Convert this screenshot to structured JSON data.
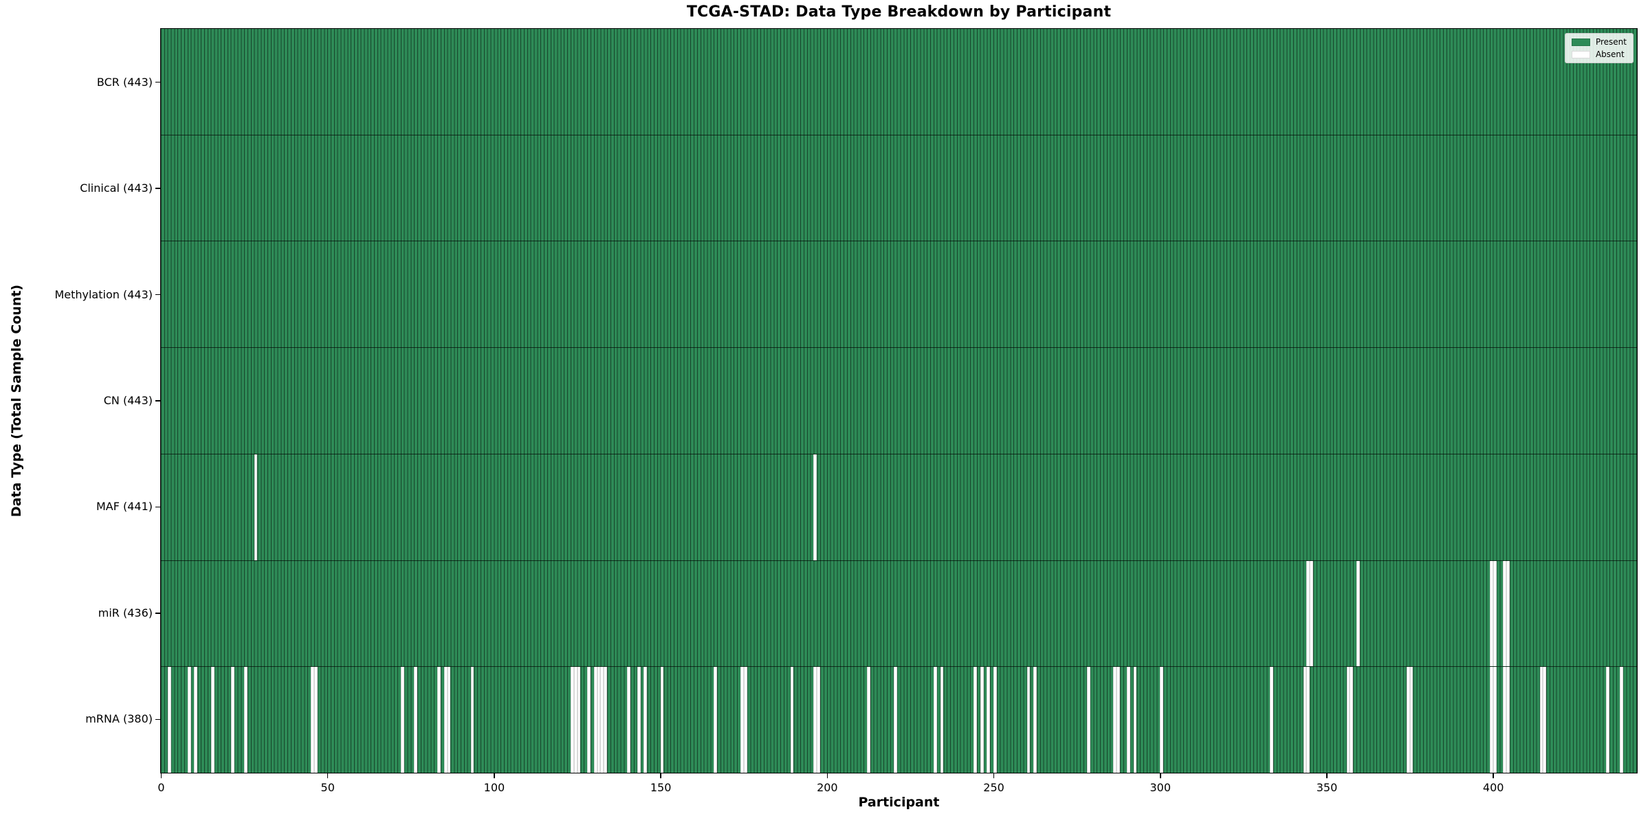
{
  "title": "TCGA-STAD: Data Type Breakdown by Participant",
  "x_axis": {
    "label": "Participant",
    "ticks": [
      0,
      50,
      100,
      150,
      200,
      250,
      300,
      350,
      400
    ]
  },
  "y_axis": {
    "label": "Data Type (Total Sample Count)"
  },
  "legend": {
    "present_label": "Present",
    "absent_label": "Absent"
  },
  "chart_data": {
    "type": "heatmap",
    "subtype": "presence-absence matrix, one column per participant",
    "n_participants": 443,
    "x_range": [
      0,
      443
    ],
    "colors": {
      "present": "#2e8b57",
      "absent": "#ffffff",
      "bar_edge": "rgba(0,0,0,0.5)"
    },
    "legend_position": "upper right",
    "rows": [
      {
        "key": "BCR",
        "label": "BCR (443)",
        "present_count": 443,
        "absent_participants": []
      },
      {
        "key": "Clinical",
        "label": "Clinical (443)",
        "present_count": 443,
        "absent_participants": []
      },
      {
        "key": "Methylation",
        "label": "Methylation (443)",
        "present_count": 443,
        "absent_participants": []
      },
      {
        "key": "CN",
        "label": "CN (443)",
        "present_count": 443,
        "absent_participants": []
      },
      {
        "key": "MAF",
        "label": "MAF (441)",
        "present_count": 441,
        "absent_participants": [
          28,
          196
        ]
      },
      {
        "key": "miR",
        "label": "miR (436)",
        "present_count": 436,
        "absent_participants": [
          344,
          345,
          359,
          399,
          400,
          403,
          404
        ]
      },
      {
        "key": "mRNA",
        "label": "mRNA (380)",
        "present_count": 380,
        "absent_participants": [
          2,
          8,
          10,
          15,
          21,
          25,
          45,
          46,
          72,
          76,
          83,
          85,
          86,
          93,
          123,
          124,
          125,
          128,
          130,
          131,
          132,
          133,
          140,
          143,
          145,
          150,
          166,
          174,
          175,
          189,
          196,
          197,
          212,
          220,
          232,
          234,
          244,
          246,
          248,
          250,
          260,
          262,
          278,
          286,
          287,
          290,
          292,
          300,
          333,
          343,
          344,
          356,
          357,
          374,
          375,
          399,
          400,
          403,
          404,
          414,
          415,
          434,
          438
        ]
      }
    ]
  }
}
